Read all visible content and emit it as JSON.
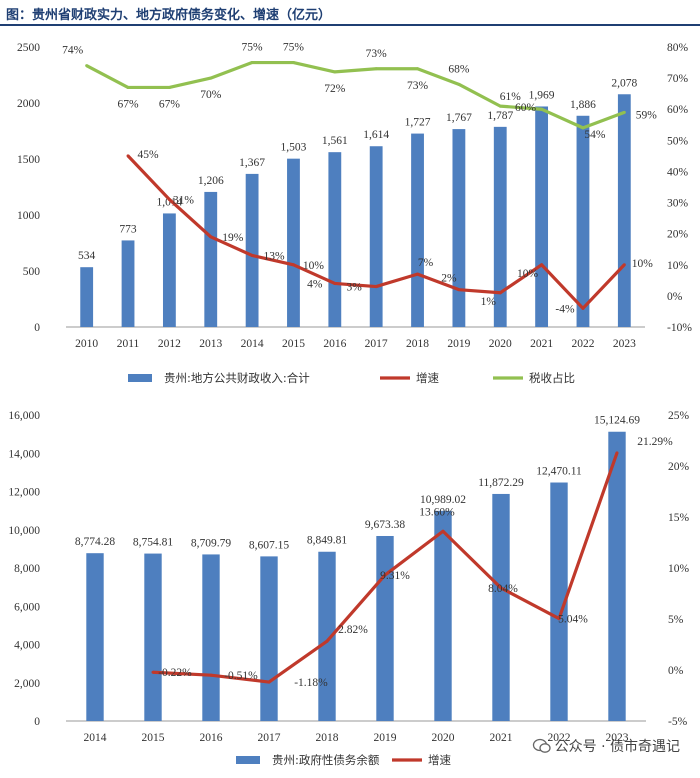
{
  "title": "图：贵州省财政实力、地方政府债务变化、增速（亿元）",
  "watermark": "公众号 · 债市奇遇记",
  "colors": {
    "bar": "#4e7fbf",
    "growth": "#c0392b",
    "tax": "#92c050",
    "title": "#1f3f73"
  },
  "chart_data": [
    {
      "type": "bar",
      "categories": [
        "2010",
        "2011",
        "2012",
        "2013",
        "2014",
        "2015",
        "2016",
        "2017",
        "2018",
        "2019",
        "2020",
        "2021",
        "2022",
        "2023"
      ],
      "ylim": [
        0,
        2500
      ],
      "yticks": [
        0,
        500,
        1000,
        1500,
        2000,
        2500
      ],
      "yticks_right": [
        "80%",
        "70%",
        "60%",
        "50%",
        "40%",
        "30%",
        "20%",
        "10%",
        "0%",
        "-10%"
      ],
      "y2lim": [
        -10,
        80
      ],
      "series": [
        {
          "name": "贵州:地方公共财政收入:合计",
          "kind": "bar",
          "values": [
            534,
            773,
            1014,
            1206,
            1367,
            1503,
            1561,
            1614,
            1727,
            1767,
            1787,
            1969,
            1886,
            2078
          ],
          "labels": [
            "534",
            "773",
            "1,014",
            "1,206",
            "1,367",
            "1,503",
            "1,561",
            "1,614",
            "1,727",
            "1,767",
            "1,787",
            "1,969",
            "1,886",
            "2,078"
          ]
        },
        {
          "name": "增速",
          "kind": "line",
          "axis": "right",
          "values": [
            null,
            45,
            31,
            19,
            13,
            10,
            4,
            3,
            7,
            2,
            1,
            10,
            -4,
            10
          ],
          "labels": [
            "",
            "45%",
            "31%",
            "19%",
            "13%",
            "10%",
            "4%",
            "3%",
            "7%",
            "2%",
            "1%",
            "10%",
            "-4%",
            "10%"
          ]
        },
        {
          "name": "税收占比",
          "kind": "line",
          "axis": "right",
          "values": [
            74,
            67,
            67,
            70,
            75,
            75,
            72,
            73,
            73,
            68,
            61,
            60,
            54,
            59
          ],
          "labels": [
            "74%",
            "67%",
            "67%",
            "70%",
            "75%",
            "75%",
            "72%",
            "73%",
            "73%",
            "68%",
            "61%",
            "60%",
            "54%",
            "59%"
          ]
        }
      ]
    },
    {
      "type": "bar",
      "categories": [
        "2014",
        "2015",
        "2016",
        "2017",
        "2018",
        "2019",
        "2020",
        "2021",
        "2022",
        "2023"
      ],
      "ylim": [
        0,
        16000
      ],
      "yticks": [
        "0",
        "2,000",
        "4,000",
        "6,000",
        "8,000",
        "10,000",
        "12,000",
        "14,000",
        "16,000"
      ],
      "yticks_right": [
        "25%",
        "20%",
        "15%",
        "10%",
        "5%",
        "0%",
        "-5%"
      ],
      "y2lim": [
        -5,
        25
      ],
      "series": [
        {
          "name": "贵州:政府性债务余额",
          "kind": "bar",
          "values": [
            8774.28,
            8754.81,
            8709.79,
            8607.15,
            8849.81,
            9673.38,
            10989.02,
            11872.29,
            12470.11,
            15124.69
          ],
          "labels": [
            "8,774.28",
            "8,754.81",
            "8,709.79",
            "8,607.15",
            "8,849.81",
            "9,673.38",
            "10,989.02",
            "11,872.29",
            "12,470.11",
            "15,124.69"
          ]
        },
        {
          "name": "增速",
          "kind": "line",
          "axis": "right",
          "values": [
            null,
            -0.22,
            -0.51,
            -1.18,
            2.82,
            9.31,
            13.6,
            8.04,
            5.04,
            21.29
          ],
          "labels": [
            "",
            "-0.22%",
            "-0.51%",
            "-1.18%",
            "2.82%",
            "9.31%",
            "13.60%",
            "8.04%",
            "5.04%",
            "21.29%"
          ]
        }
      ]
    }
  ]
}
